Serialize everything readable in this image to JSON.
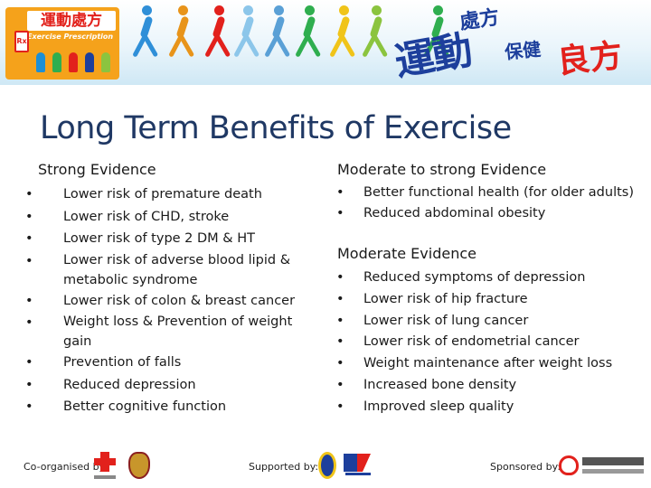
{
  "banner": {
    "logo_title": "運動處方",
    "logo_subtitle": "Exercise Prescription",
    "logo_doc_mark": "Rx",
    "slogan_line1": "處方",
    "slogan_big": "運動",
    "slogan_line2": "保健",
    "slogan_line3": "良方",
    "colors": {
      "orange": "#f5a21b",
      "blue": "#1d3f9c",
      "red": "#e2211c"
    }
  },
  "slide": {
    "title": "Long Term Benefits of Exercise"
  },
  "left_column": {
    "heading": "Strong Evidence",
    "items": [
      "Lower risk of premature death",
      "Lower risk of CHD, stroke",
      "Lower risk of type 2 DM & HT",
      "Lower risk of adverse blood lipid & metabolic syndrome",
      "Lower risk of colon & breast cancer",
      "Weight loss & Prevention of weight gain",
      "Prevention of falls",
      "Reduced depression",
      "Better cognitive function"
    ]
  },
  "right_column": {
    "heading1": "Moderate to strong Evidence",
    "items1": [
      "Better functional health (for older adults)",
      "Reduced abdominal obesity"
    ],
    "heading2": "Moderate Evidence",
    "items2": [
      "Reduced symptoms of depression",
      "Lower risk of hip fracture",
      "Lower risk of lung cancer",
      "Lower risk of endometrial cancer",
      "Weight maintenance after weight loss",
      "Increased bone density",
      "Improved sleep quality"
    ]
  },
  "footer": {
    "co_organised_label": "Co-organised by:",
    "supported_label": "Supported by:",
    "sponsored_label": "Sponsored by:"
  }
}
